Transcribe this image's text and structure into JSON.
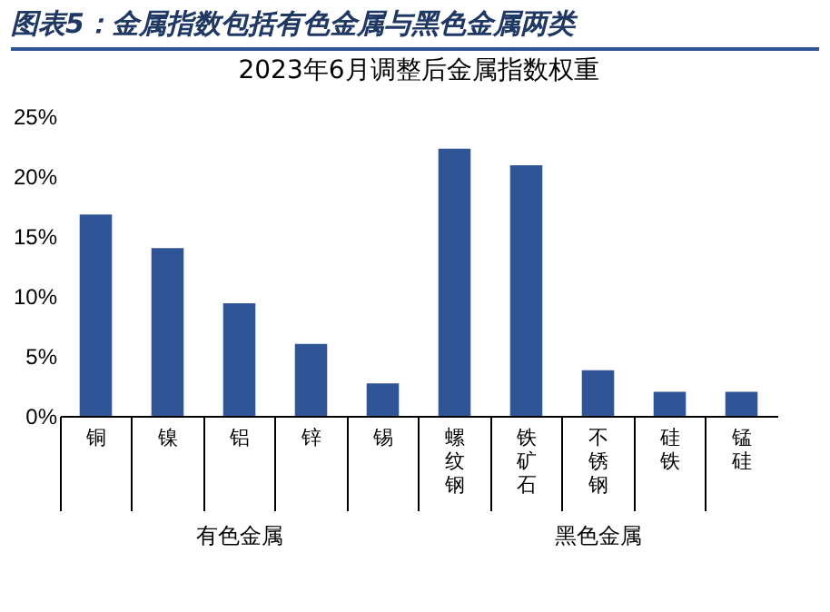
{
  "chart_data": {
    "type": "bar",
    "title": "图表5：金属指数包括有色金属与黑色金属两类",
    "subtitle": "2023年6月调整后金属指数权重",
    "categories": [
      "铜",
      "镍",
      "铝",
      "锌",
      "锡",
      "螺纹钢",
      "铁矿石",
      "不锈钢",
      "硅铁",
      "锰硅"
    ],
    "values": [
      16.8,
      14.0,
      9.4,
      6.0,
      2.7,
      22.3,
      20.9,
      3.8,
      2.0,
      2.0
    ],
    "color": "#2f5597",
    "ylim": [
      0,
      25
    ],
    "yticks": [
      {
        "value": 0,
        "label": "0%"
      },
      {
        "value": 5,
        "label": "5%"
      },
      {
        "value": 10,
        "label": "10%"
      },
      {
        "value": 15,
        "label": "15%"
      },
      {
        "value": 20,
        "label": "20%"
      },
      {
        "value": 25,
        "label": "25%"
      }
    ],
    "grid": false,
    "annotations": [
      "有色金属",
      "黑色金属"
    ]
  }
}
